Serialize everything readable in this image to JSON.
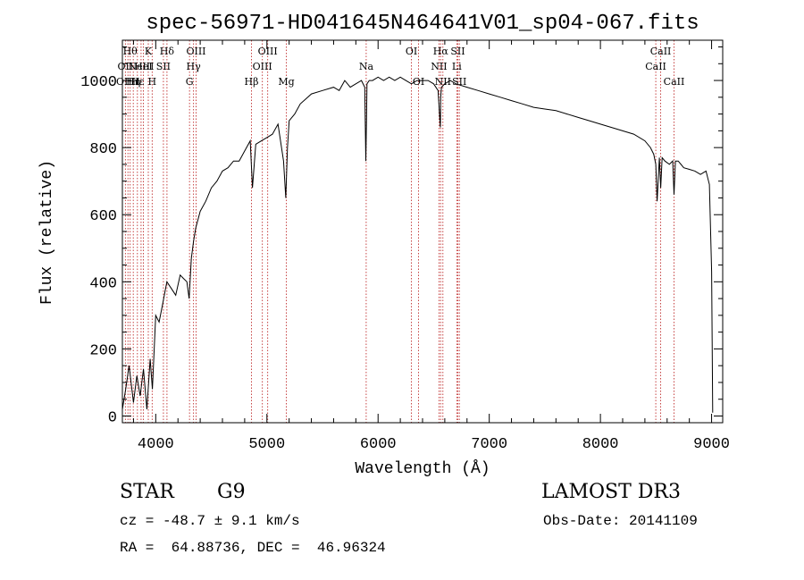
{
  "chart_data": {
    "type": "line",
    "title": "spec-56971-HD041645N464641V01_sp04-067.fits",
    "xlabel": "Wavelength (Å)",
    "ylabel": "Flux (relative)",
    "xlim": [
      3700,
      9100
    ],
    "ylim": [
      -20,
      1120
    ],
    "xticks": [
      4000,
      5000,
      6000,
      7000,
      8000,
      9000
    ],
    "xtick_labels": [
      "4000",
      "5000",
      "6000",
      "7000",
      "8000",
      "9000"
    ],
    "yticks": [
      0,
      200,
      400,
      600,
      800,
      1000
    ],
    "ytick_labels": [
      "0",
      "200",
      "400",
      "600",
      "800",
      "1000"
    ],
    "grid": false,
    "series": [
      {
        "name": "flux",
        "x": [
          3700,
          3730,
          3760,
          3800,
          3830,
          3860,
          3890,
          3920,
          3950,
          3970,
          4000,
          4030,
          4060,
          4100,
          4140,
          4180,
          4220,
          4250,
          4280,
          4300,
          4320,
          4340,
          4360,
          4400,
          4450,
          4500,
          4550,
          4600,
          4650,
          4700,
          4750,
          4800,
          4850,
          4870,
          4900,
          4950,
          5000,
          5050,
          5100,
          5150,
          5170,
          5185,
          5200,
          5250,
          5300,
          5400,
          5500,
          5600,
          5650,
          5700,
          5750,
          5800,
          5850,
          5880,
          5890,
          5896,
          5900,
          5920,
          5950,
          6000,
          6050,
          6100,
          6150,
          6200,
          6250,
          6300,
          6350,
          6400,
          6450,
          6500,
          6540,
          6560,
          6563,
          6570,
          6600,
          6650,
          6700,
          6800,
          6900,
          7000,
          7100,
          7200,
          7300,
          7400,
          7500,
          7600,
          7700,
          7800,
          7900,
          8000,
          8100,
          8200,
          8300,
          8400,
          8450,
          8480,
          8498,
          8510,
          8530,
          8542,
          8555,
          8580,
          8620,
          8650,
          8662,
          8675,
          8700,
          8750,
          8800,
          8850,
          8900,
          8950,
          8980,
          9000,
          9010
        ],
        "y": [
          20,
          80,
          150,
          40,
          120,
          60,
          140,
          20,
          170,
          80,
          300,
          280,
          330,
          400,
          380,
          360,
          420,
          410,
          400,
          350,
          470,
          520,
          560,
          610,
          640,
          680,
          700,
          730,
          740,
          760,
          760,
          790,
          820,
          680,
          810,
          820,
          830,
          840,
          870,
          760,
          650,
          800,
          880,
          900,
          930,
          960,
          970,
          980,
          970,
          1000,
          980,
          990,
          1000,
          980,
          760,
          890,
          990,
          1000,
          1000,
          1010,
          1000,
          1010,
          1000,
          1010,
          1000,
          990,
          1000,
          1000,
          1000,
          990,
          970,
          860,
          950,
          980,
          990,
          1000,
          990,
          980,
          970,
          960,
          950,
          940,
          930,
          920,
          915,
          910,
          900,
          890,
          880,
          870,
          860,
          850,
          840,
          820,
          800,
          780,
          750,
          640,
          770,
          680,
          770,
          760,
          750,
          760,
          660,
          760,
          760,
          740,
          735,
          730,
          720,
          730,
          690,
          430,
          10
        ]
      }
    ],
    "line_markers": [
      {
        "wavelength": 3727,
        "label": "OII",
        "row": 2
      },
      {
        "wavelength": 3750,
        "label": "OIIII",
        "row": 3
      },
      {
        "wavelength": 3770,
        "label": "Hθ",
        "row": 1
      },
      {
        "wavelength": 3798,
        "label": "Hη",
        "row": 3
      },
      {
        "wavelength": 3835,
        "label": "Hε",
        "row": 3
      },
      {
        "wavelength": 3868,
        "label": "NeIII",
        "row": 2
      },
      {
        "wavelength": 3889,
        "label": "HeI",
        "row": 2
      },
      {
        "wavelength": 3933,
        "label": "K",
        "row": 1
      },
      {
        "wavelength": 3968,
        "label": "H",
        "row": 3
      },
      {
        "wavelength": 4069,
        "label": "SII",
        "row": 2
      },
      {
        "wavelength": 4101,
        "label": "Hδ",
        "row": 1
      },
      {
        "wavelength": 4304,
        "label": "G",
        "row": 3
      },
      {
        "wavelength": 4340,
        "label": "Hγ",
        "row": 2
      },
      {
        "wavelength": 4363,
        "label": "OIII",
        "row": 1
      },
      {
        "wavelength": 4861,
        "label": "Hβ",
        "row": 3
      },
      {
        "wavelength": 4959,
        "label": "OIII",
        "row": 2
      },
      {
        "wavelength": 5007,
        "label": "OIII",
        "row": 1
      },
      {
        "wavelength": 5175,
        "label": "Mg",
        "row": 3
      },
      {
        "wavelength": 5893,
        "label": "Na",
        "row": 2
      },
      {
        "wavelength": 6300,
        "label": "OI",
        "row": 1
      },
      {
        "wavelength": 6364,
        "label": "OI",
        "row": 3
      },
      {
        "wavelength": 6548,
        "label": "NII",
        "row": 2
      },
      {
        "wavelength": 6563,
        "label": "Hα",
        "row": 1
      },
      {
        "wavelength": 6583,
        "label": "NII",
        "row": 3
      },
      {
        "wavelength": 6708,
        "label": "Li",
        "row": 2
      },
      {
        "wavelength": 6717,
        "label": "SII",
        "row": 1
      },
      {
        "wavelength": 6731,
        "label": "SII",
        "row": 3
      },
      {
        "wavelength": 8498,
        "label": "CaII",
        "row": 2
      },
      {
        "wavelength": 8542,
        "label": "CaII",
        "row": 1
      },
      {
        "wavelength": 8662,
        "label": "CaII",
        "row": 3
      }
    ]
  },
  "info": {
    "class_label": "STAR",
    "subclass": "G9",
    "survey": "LAMOST DR3",
    "cz": "cz = -48.7 ± 9.1 km/s",
    "obs_date": "Obs-Date: 20141109",
    "coords": "RA =  64.88736, DEC =  46.96324"
  },
  "colors": {
    "line_marker": "#c03030",
    "spectrum": "#000000"
  }
}
